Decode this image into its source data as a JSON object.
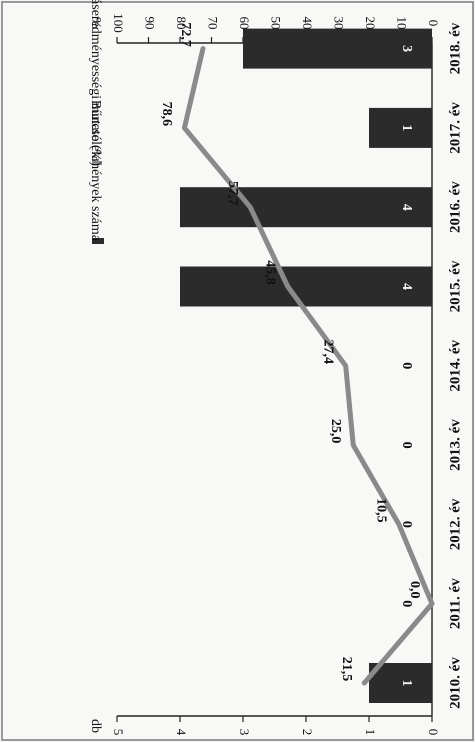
{
  "chart_data": {
    "type": "bar+line",
    "categories": [
      "2010. év",
      "2011. év",
      "2012. év",
      "2013. év",
      "2014. év",
      "2015. év",
      "2016. év",
      "2017. év",
      "2018. év"
    ],
    "series": [
      {
        "name": "Bűncselekmények száma",
        "type": "bar",
        "axis": "left",
        "values": [
          1,
          0,
          0,
          0,
          0,
          4,
          4,
          1,
          3
        ],
        "labels": [
          "1",
          "0",
          "0",
          "0",
          "0",
          "4",
          "4",
          "1",
          "3"
        ],
        "color": "#2b2b2b"
      },
      {
        "name": "Nyomozáseredményességi mutató (%)",
        "type": "line",
        "axis": "right",
        "values": [
          21.5,
          0.0,
          10.5,
          25.0,
          27.4,
          45.8,
          57.7,
          78.6,
          72.7
        ],
        "labels": [
          "21,5",
          "0,0",
          "10,5",
          "25,0",
          "27,4",
          "45,8",
          "57,7",
          "78,6",
          "72,7"
        ],
        "color": "#8a8a8a"
      }
    ],
    "left_axis": {
      "unit": "db",
      "range": [
        0,
        5
      ],
      "ticks": [
        "0",
        "1",
        "2",
        "3",
        "4",
        "5"
      ]
    },
    "right_axis": {
      "unit": "%",
      "range": [
        0,
        100
      ],
      "ticks": [
        "0",
        "10",
        "20",
        "30",
        "40",
        "50",
        "60",
        "70",
        "80",
        "90",
        "100"
      ]
    },
    "orientation": "rotated 90° clockwise",
    "legend": {
      "placement": "top-left",
      "entries": [
        "Bűncselekmények száma",
        "Nyomozáseredményességi mutató (%)"
      ]
    }
  }
}
